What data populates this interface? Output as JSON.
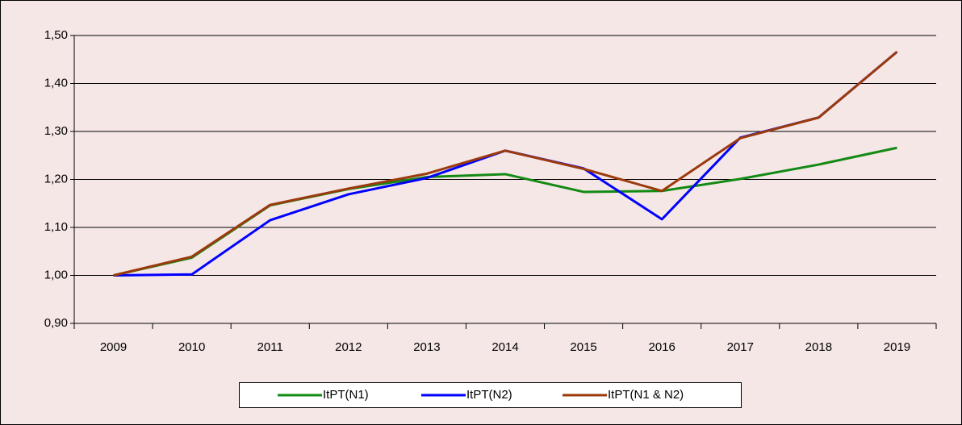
{
  "chart_data": {
    "type": "line",
    "categories": [
      "2009",
      "2010",
      "2011",
      "2012",
      "2013",
      "2014",
      "2015",
      "2016",
      "2017",
      "2018",
      "2019"
    ],
    "series": [
      {
        "name": "ItPT(N1)",
        "color": "#138a13",
        "values": [
          1.0,
          1.037,
          1.146,
          1.18,
          1.205,
          1.211,
          1.174,
          1.176,
          1.201,
          1.231,
          1.266
        ]
      },
      {
        "name": "ItPT(N2)",
        "color": "#0000ff",
        "values": [
          1.0,
          1.002,
          1.115,
          1.169,
          1.203,
          1.26,
          1.223,
          1.117,
          1.287,
          1.329,
          1.466
        ]
      },
      {
        "name": "ItPT(N1 & N2)",
        "color": "#9b3a0c",
        "values": [
          1.0,
          1.039,
          1.147,
          1.181,
          1.212,
          1.26,
          1.222,
          1.176,
          1.286,
          1.329,
          1.466
        ]
      }
    ],
    "ylim": [
      0.9,
      1.5
    ],
    "yticks": [
      {
        "value": 0.9,
        "label": "0,90"
      },
      {
        "value": 1.0,
        "label": "1,00"
      },
      {
        "value": 1.1,
        "label": "1,10"
      },
      {
        "value": 1.2,
        "label": "1,20"
      },
      {
        "value": 1.3,
        "label": "1,30"
      },
      {
        "value": 1.4,
        "label": "1,40"
      },
      {
        "value": 1.5,
        "label": "1,50"
      }
    ],
    "grid": true,
    "legend": "bottom"
  }
}
